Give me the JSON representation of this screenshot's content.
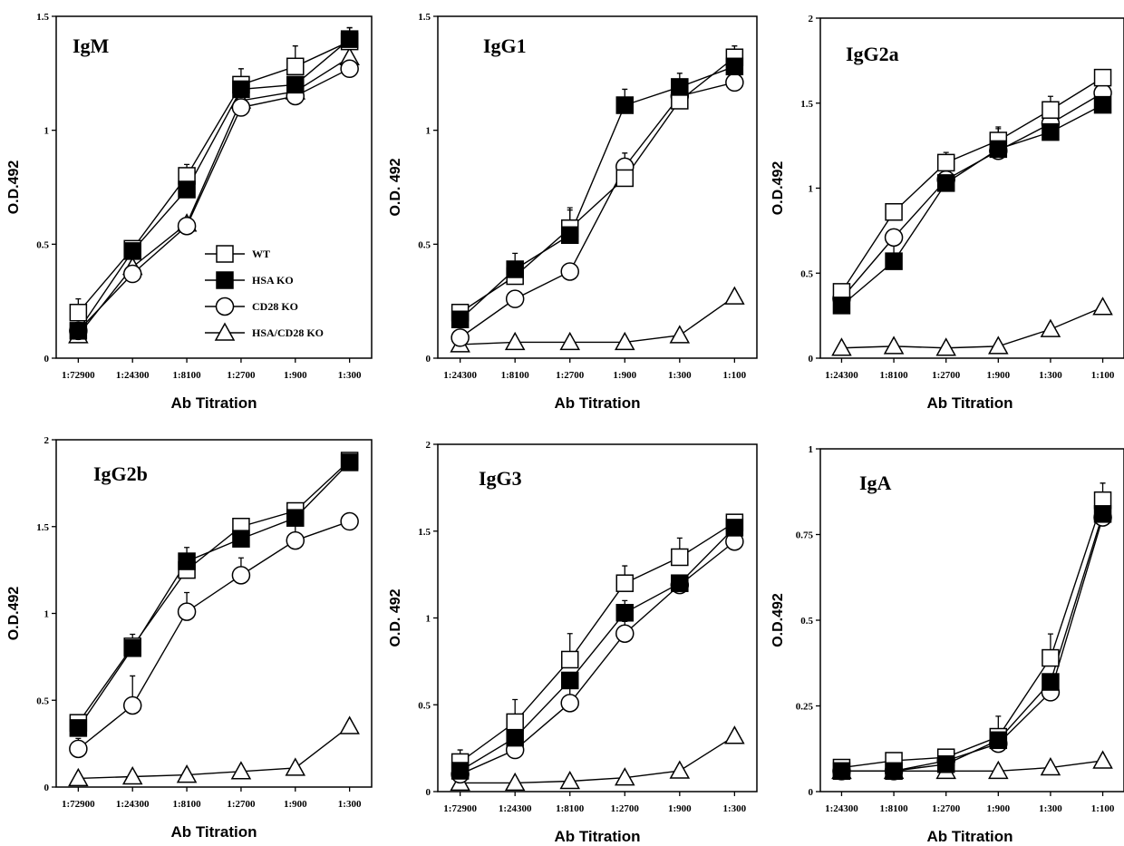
{
  "chart_data": [
    {
      "type": "line",
      "title": "IgM",
      "xlabel": "Ab Titration",
      "ylabel": "O.D.492",
      "ylim": [
        0,
        1.5
      ],
      "yticks": [
        "0",
        "0.5",
        "1",
        "1.5"
      ],
      "categories": [
        "1:72900",
        "1:24300",
        "1:8100",
        "1:2700",
        "1:900",
        "1:300"
      ],
      "legend": "lower-right",
      "series": [
        {
          "name": "WT",
          "marker": "open-square",
          "values": [
            0.2,
            0.48,
            0.8,
            1.2,
            1.28,
            1.39
          ],
          "err": [
            0.06,
            0.02,
            0.05,
            0.07,
            0.09,
            0.06
          ]
        },
        {
          "name": "HSA KO",
          "marker": "filled-square",
          "values": [
            0.12,
            0.47,
            0.74,
            1.18,
            1.2,
            1.4
          ],
          "err": [
            0,
            0.03,
            0.06,
            0,
            0,
            0.05
          ]
        },
        {
          "name": "CD28 KO",
          "marker": "open-circle",
          "values": [
            0.12,
            0.37,
            0.58,
            1.1,
            1.15,
            1.27
          ],
          "err": [
            0,
            0,
            0,
            0,
            0,
            0
          ]
        },
        {
          "name": "HSA/CD28 KO",
          "marker": "open-triangle",
          "values": [
            0.1,
            0.4,
            0.59,
            1.13,
            1.17,
            1.32
          ],
          "err": [
            0,
            0,
            0,
            0,
            0,
            0
          ]
        }
      ]
    },
    {
      "type": "line",
      "title": "IgG1",
      "xlabel": "Ab Titration",
      "ylabel": "O.D. 492",
      "ylim": [
        0,
        1.5
      ],
      "yticks": [
        "0",
        "0.5",
        "1",
        "1.5"
      ],
      "categories": [
        "1:24300",
        "1:8100",
        "1:2700",
        "1:900",
        "1:300",
        "1:100"
      ],
      "series": [
        {
          "name": "WT",
          "marker": "open-square",
          "values": [
            0.2,
            0.36,
            0.57,
            0.79,
            1.13,
            1.32
          ],
          "err": [
            0,
            0.05,
            0.09,
            0,
            0,
            0.05
          ]
        },
        {
          "name": "HSA KO",
          "marker": "filled-square",
          "values": [
            0.17,
            0.39,
            0.54,
            1.11,
            1.19,
            1.28
          ],
          "err": [
            0,
            0.07,
            0.11,
            0.07,
            0.06,
            0.04
          ]
        },
        {
          "name": "CD28 KO",
          "marker": "open-circle",
          "values": [
            0.09,
            0.26,
            0.38,
            0.84,
            1.15,
            1.21
          ],
          "err": [
            0,
            0,
            0,
            0.06,
            0,
            0.05
          ]
        },
        {
          "name": "HSA/CD28 KO",
          "marker": "open-triangle",
          "values": [
            0.06,
            0.07,
            0.07,
            0.07,
            0.1,
            0.27
          ],
          "err": [
            0,
            0,
            0,
            0,
            0,
            0
          ]
        }
      ]
    },
    {
      "type": "line",
      "title": "IgG2a",
      "xlabel": "Ab Titration",
      "ylabel": "O.D.492",
      "ylim": [
        0,
        2
      ],
      "yticks": [
        "0",
        "0.5",
        "1",
        "1.5",
        "2"
      ],
      "categories": [
        "1:24300",
        "1:8100",
        "1:2700",
        "1:900",
        "1:300",
        "1:100"
      ],
      "series": [
        {
          "name": "WT",
          "marker": "open-square",
          "values": [
            0.39,
            0.86,
            1.15,
            1.28,
            1.46,
            1.65
          ],
          "err": [
            0,
            0,
            0.06,
            0.08,
            0.08,
            0
          ]
        },
        {
          "name": "HSA KO",
          "marker": "filled-square",
          "values": [
            0.31,
            0.57,
            1.03,
            1.23,
            1.33,
            1.49
          ],
          "err": [
            0,
            0.17,
            0.16,
            0.12,
            0.13,
            0.11
          ]
        },
        {
          "name": "CD28 KO",
          "marker": "open-circle",
          "values": [
            0.35,
            0.71,
            1.05,
            1.22,
            1.38,
            1.56
          ],
          "err": [
            0,
            0,
            0,
            0,
            0,
            0
          ]
        },
        {
          "name": "HSA/CD28 KO",
          "marker": "open-triangle",
          "values": [
            0.06,
            0.07,
            0.06,
            0.07,
            0.17,
            0.3
          ],
          "err": [
            0,
            0,
            0,
            0,
            0,
            0
          ]
        }
      ]
    },
    {
      "type": "line",
      "title": "IgG2b",
      "xlabel": "Ab Titration",
      "ylabel": "O.D.492",
      "ylim": [
        0,
        2
      ],
      "yticks": [
        "0",
        "0.5",
        "1",
        "1.5",
        "2"
      ],
      "categories": [
        "1:72900",
        "1:24300",
        "1:8100",
        "1:2700",
        "1:900",
        "1:300"
      ],
      "series": [
        {
          "name": "WT",
          "marker": "open-square",
          "values": [
            0.37,
            0.81,
            1.25,
            1.5,
            1.59,
            1.88
          ],
          "err": [
            0,
            0.07,
            0,
            0,
            0,
            0
          ]
        },
        {
          "name": "HSA KO",
          "marker": "filled-square",
          "values": [
            0.34,
            0.8,
            1.3,
            1.43,
            1.55,
            1.87
          ],
          "err": [
            0,
            0,
            0.08,
            0.08,
            0,
            0
          ]
        },
        {
          "name": "CD28 KO",
          "marker": "open-circle",
          "values": [
            0.22,
            0.47,
            1.01,
            1.22,
            1.42,
            1.53
          ],
          "err": [
            0.06,
            0.17,
            0.11,
            0.1,
            0.12,
            0
          ]
        },
        {
          "name": "HSA/CD28 KO",
          "marker": "open-triangle",
          "values": [
            0.05,
            0.06,
            0.07,
            0.09,
            0.11,
            0.35
          ],
          "err": [
            0,
            0,
            0,
            0,
            0,
            0
          ]
        }
      ]
    },
    {
      "type": "line",
      "title": "IgG3",
      "xlabel": "Ab Titration",
      "ylabel": "O.D. 492",
      "ylim": [
        0,
        2
      ],
      "yticks": [
        "0",
        "0.5",
        "1",
        "1.5",
        "2"
      ],
      "categories": [
        "1:72900",
        "1:24300",
        "1:8100",
        "1:2700",
        "1:900",
        "1:300"
      ],
      "series": [
        {
          "name": "WT",
          "marker": "open-square",
          "values": [
            0.17,
            0.4,
            0.76,
            1.2,
            1.35,
            1.55
          ],
          "err": [
            0.07,
            0.13,
            0.15,
            0.1,
            0.11,
            0
          ]
        },
        {
          "name": "HSA KO",
          "marker": "filled-square",
          "values": [
            0.12,
            0.31,
            0.64,
            1.03,
            1.2,
            1.52
          ],
          "err": [
            0,
            0,
            0,
            0.07,
            0,
            0
          ]
        },
        {
          "name": "CD28 KO",
          "marker": "open-circle",
          "values": [
            0.1,
            0.24,
            0.51,
            0.91,
            1.19,
            1.44
          ],
          "err": [
            0,
            0.06,
            0.11,
            0.07,
            0,
            0.08
          ]
        },
        {
          "name": "HSA/CD28 KO",
          "marker": "open-triangle",
          "values": [
            0.05,
            0.05,
            0.06,
            0.08,
            0.12,
            0.32
          ],
          "err": [
            0,
            0,
            0,
            0,
            0,
            0
          ]
        }
      ]
    },
    {
      "type": "line",
      "title": "IgA",
      "xlabel": "Ab Titration",
      "ylabel": "O.D.492",
      "ylim": [
        0,
        1
      ],
      "yticks": [
        "0",
        "0.25",
        "0.5",
        "0.75",
        "1"
      ],
      "categories": [
        "1:24300",
        "1:8100",
        "1:2700",
        "1:900",
        "1:300",
        "1:100"
      ],
      "series": [
        {
          "name": "WT",
          "marker": "open-square",
          "values": [
            0.07,
            0.09,
            0.1,
            0.16,
            0.39,
            0.85
          ],
          "err": [
            0,
            0,
            0,
            0.06,
            0.07,
            0.05
          ]
        },
        {
          "name": "HSA KO",
          "marker": "filled-square",
          "values": [
            0.06,
            0.06,
            0.08,
            0.15,
            0.32,
            0.81
          ],
          "err": [
            0,
            0,
            0,
            0,
            0,
            0
          ]
        },
        {
          "name": "CD28 KO",
          "marker": "open-circle",
          "values": [
            0.06,
            0.06,
            0.09,
            0.14,
            0.29,
            0.8
          ],
          "err": [
            0,
            0,
            0,
            0,
            0.04,
            0
          ]
        },
        {
          "name": "HSA/CD28 KO",
          "marker": "open-triangle",
          "values": [
            0.06,
            0.06,
            0.06,
            0.06,
            0.07,
            0.09
          ],
          "err": [
            0,
            0,
            0,
            0,
            0,
            0
          ]
        }
      ]
    }
  ],
  "legend": {
    "items": [
      {
        "label": "WT",
        "marker": "open-square"
      },
      {
        "label": "HSA KO",
        "marker": "filled-square"
      },
      {
        "label": "CD28 KO",
        "marker": "open-circle"
      },
      {
        "label": "HSA/CD28 KO",
        "marker": "open-triangle"
      }
    ]
  },
  "colors": {
    "ink": "#000000",
    "background": "#ffffff"
  }
}
